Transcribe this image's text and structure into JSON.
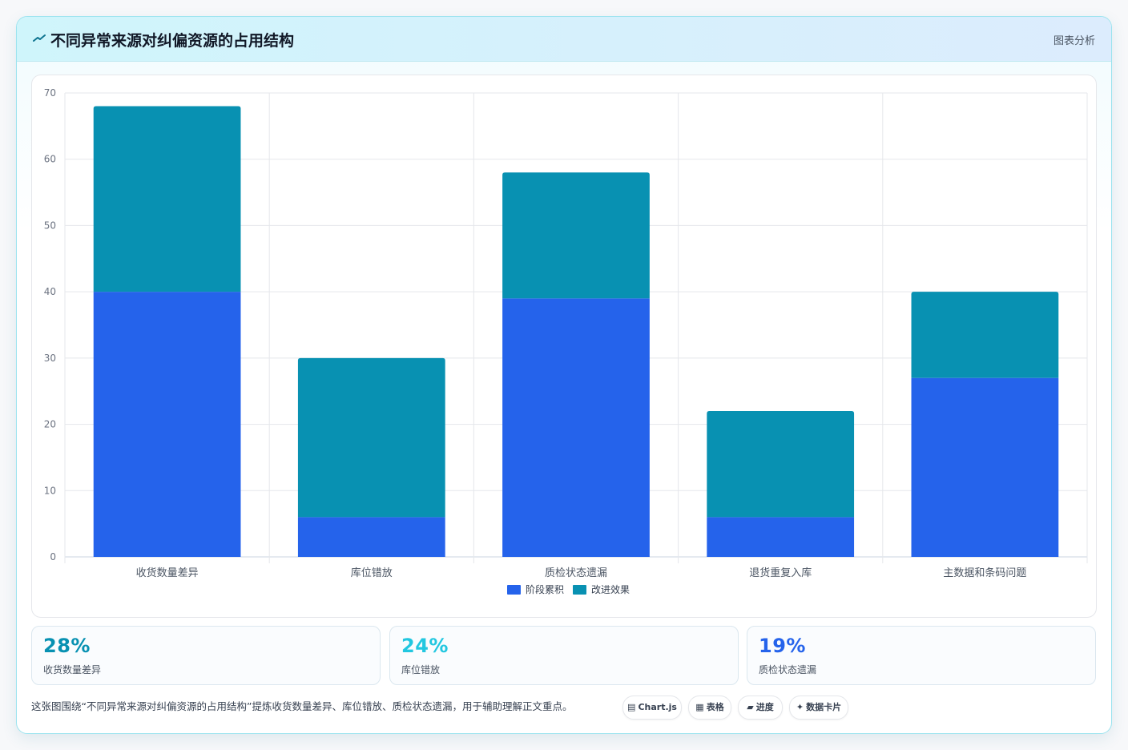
{
  "header": {
    "title": "不同异常来源对纠偏资源的占用结构",
    "tag": "图表分析",
    "icon": "line-chart-icon"
  },
  "chart_data": {
    "type": "bar",
    "stacked": true,
    "categories": [
      "收货数量差异",
      "库位错放",
      "质检状态遗漏",
      "退货重复入库",
      "主数据和条码问题"
    ],
    "series": [
      {
        "name": "阶段累积",
        "values": [
          40,
          6,
          39,
          6,
          27
        ],
        "color": "#2563eb"
      },
      {
        "name": "改进效果",
        "values": [
          28,
          24,
          19,
          16,
          13
        ],
        "color": "#0891b2"
      }
    ],
    "ylim": [
      0,
      70
    ],
    "yticks": [
      0,
      10,
      20,
      30,
      40,
      50,
      60,
      70
    ],
    "grid": true,
    "legend": "bottom"
  },
  "stats": [
    {
      "value": "28%",
      "label": "收货数量差异",
      "color": "#0891b2"
    },
    {
      "value": "24%",
      "label": "库位错放",
      "color": "#22c7e0"
    },
    {
      "value": "19%",
      "label": "质检状态遗漏",
      "color": "#2563eb"
    }
  ],
  "footer": {
    "text": "这张图围绕“不同异常来源对纠偏资源的占用结构”提炼收货数量差异、库位错放、质检状态遗漏，用于辅助理解正文重点。",
    "chips": [
      {
        "icon": "▤",
        "label": "Chart.js"
      },
      {
        "icon": "▦",
        "label": "表格"
      },
      {
        "icon": "▰",
        "label": "进度"
      },
      {
        "icon": "✦",
        "label": "数据卡片"
      }
    ]
  }
}
